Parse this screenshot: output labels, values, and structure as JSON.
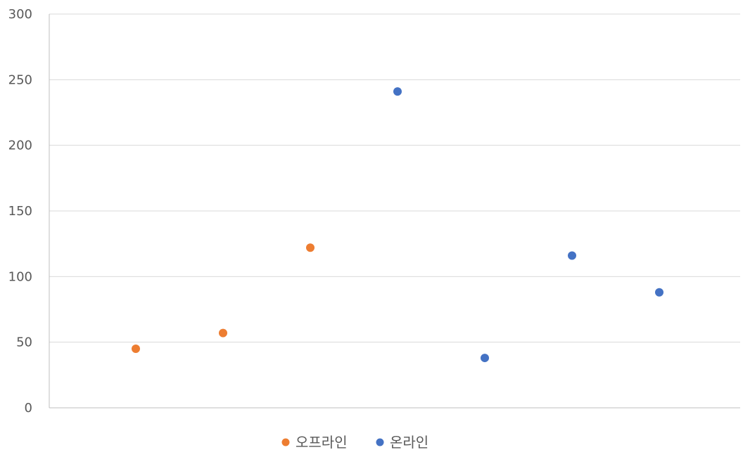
{
  "chart_data": {
    "type": "scatter",
    "title": "",
    "xlabel": "",
    "ylabel": "",
    "xlim": [
      0,
      7
    ],
    "ylim": [
      0,
      300
    ],
    "yticks": [
      "0",
      "50",
      "100",
      "150",
      "200",
      "250",
      "300"
    ],
    "grid": true,
    "legend_position": "bottom",
    "series": [
      {
        "name": "오프라인",
        "color": "#ED7D31",
        "points": [
          {
            "x": 1,
            "y": 45
          },
          {
            "x": 2,
            "y": 57
          },
          {
            "x": 3,
            "y": 122
          }
        ]
      },
      {
        "name": "온라인",
        "color": "#4472C4",
        "points": [
          {
            "x": 4,
            "y": 241
          },
          {
            "x": 5,
            "y": 38
          },
          {
            "x": 6,
            "y": 116
          },
          {
            "x": 7,
            "y": 88
          }
        ]
      }
    ]
  }
}
